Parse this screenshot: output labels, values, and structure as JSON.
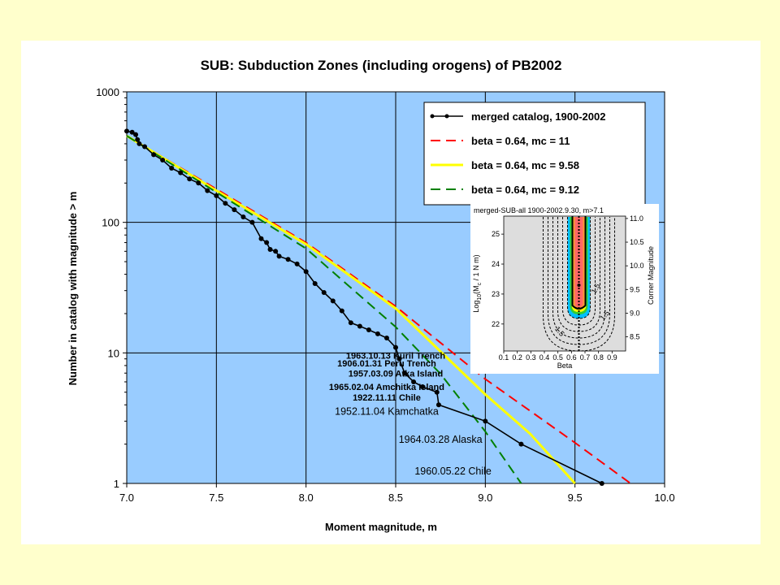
{
  "chart_data": {
    "type": "line",
    "title": "SUB: Subduction Zones (including orogens) of PB2002",
    "xlabel": "Moment magnitude, m",
    "ylabel": "Number in catalog with magnitude > m",
    "xlim": [
      7.0,
      10.0
    ],
    "ylim": [
      1,
      1000
    ],
    "yscale": "log",
    "grid": true,
    "legend_position": "top-right",
    "x_ticks": [
      "7.0",
      "7.5",
      "8.0",
      "8.5",
      "9.0",
      "9.5",
      "10.0"
    ],
    "y_ticks": [
      "1",
      "10",
      "100",
      "1000"
    ],
    "series": [
      {
        "name": "merged catalog, 1900-2002",
        "style": "line-with-markers",
        "color": "#000000",
        "x": [
          7.0,
          7.03,
          7.05,
          7.06,
          7.07,
          7.1,
          7.15,
          7.2,
          7.25,
          7.3,
          7.35,
          7.4,
          7.45,
          7.5,
          7.55,
          7.6,
          7.65,
          7.7,
          7.75,
          7.78,
          7.8,
          7.83,
          7.85,
          7.9,
          7.95,
          8.0,
          8.05,
          8.1,
          8.15,
          8.2,
          8.25,
          8.3,
          8.35,
          8.4,
          8.45,
          8.5,
          8.52,
          8.55,
          8.6,
          8.65,
          8.73,
          8.74,
          9.0,
          9.2,
          9.65
        ],
        "y": [
          500,
          490,
          470,
          430,
          400,
          380,
          330,
          300,
          260,
          240,
          215,
          200,
          175,
          160,
          140,
          125,
          110,
          100,
          75,
          70,
          62,
          60,
          55,
          52,
          48,
          42,
          34,
          29,
          25,
          21,
          17,
          16,
          15,
          14,
          13,
          11,
          9,
          7,
          6,
          5.5,
          5,
          4,
          3,
          2,
          1
        ],
        "markers_on_every_point": true
      },
      {
        "name": "beta = 0.64, mc = 11",
        "style": "dashed",
        "color": "#ff0000",
        "x": [
          7.0,
          7.5,
          8.0,
          8.5,
          9.0,
          9.5,
          9.81
        ],
        "y": [
          460,
          180,
          70,
          22.7,
          6.3,
          2.05,
          1
        ]
      },
      {
        "name": "beta = 0.64, mc = 9.58",
        "style": "solid",
        "color": "#ffff00",
        "x": [
          7.0,
          7.5,
          8.0,
          8.5,
          9.0,
          9.25,
          9.5
        ],
        "y": [
          460,
          175,
          68,
          21.9,
          4.8,
          2.4,
          1
        ]
      },
      {
        "name": "beta = 0.64, mc = 9.12",
        "style": "dashed",
        "color": "#008000",
        "x": [
          7.0,
          7.5,
          8.0,
          8.5,
          8.75,
          9.0,
          9.2
        ],
        "y": [
          460,
          170,
          63,
          15.8,
          6.9,
          2.5,
          1
        ]
      }
    ],
    "annotations": [
      {
        "text": "1963.10.13 Kuril Trench",
        "x": 8.5,
        "y": 9,
        "style": "narrow-bold"
      },
      {
        "text": "1906.01.31 Peru Trench",
        "x": 8.45,
        "y": 7.9,
        "style": "narrow-bold"
      },
      {
        "text": "1957.03.09 Atka Island",
        "x": 8.5,
        "y": 6.6,
        "style": "narrow-bold"
      },
      {
        "text": "1965.02.04 Amchitka Island",
        "x": 8.45,
        "y": 5.2,
        "style": "narrow-bold"
      },
      {
        "text": "1922.11.11 Chile",
        "x": 8.45,
        "y": 4.3,
        "style": "narrow-bold"
      },
      {
        "text": "1952.11.04 Kamchatka",
        "x": 8.45,
        "y": 3.35,
        "style": "regular"
      },
      {
        "text": "1964.03.28 Alaska",
        "x": 8.75,
        "y": 2.05,
        "style": "regular"
      },
      {
        "text": "1960.05.22 Chile",
        "x": 8.82,
        "y": 1.17,
        "style": "regular"
      }
    ],
    "inset": {
      "title": "merged-SUB-all 1900-2002.9.30, m>7.1",
      "xlabel": "Beta",
      "ylabel_left": "Log10(Mc / 1 N m)",
      "ylabel_left_parts": {
        "pre": "Log",
        "sub1": "10",
        "mid": "(M",
        "sub2": "c",
        "post": " / 1 N m)"
      },
      "ylabel_right": "Corner Magnitude",
      "x_ticks": [
        "0.1",
        "0.2",
        "0.3",
        "0.4",
        "0.5",
        "0.6",
        "0.7",
        "0.8",
        "0.9"
      ],
      "y_ticks_left": [
        "22",
        "23",
        "24",
        "25"
      ],
      "y_ticks_right": [
        "8.5",
        "9.0",
        "9.5",
        "10.0",
        "10.5",
        "11.0"
      ],
      "contour_labels": [
        "1.5",
        "1.5"
      ]
    }
  }
}
